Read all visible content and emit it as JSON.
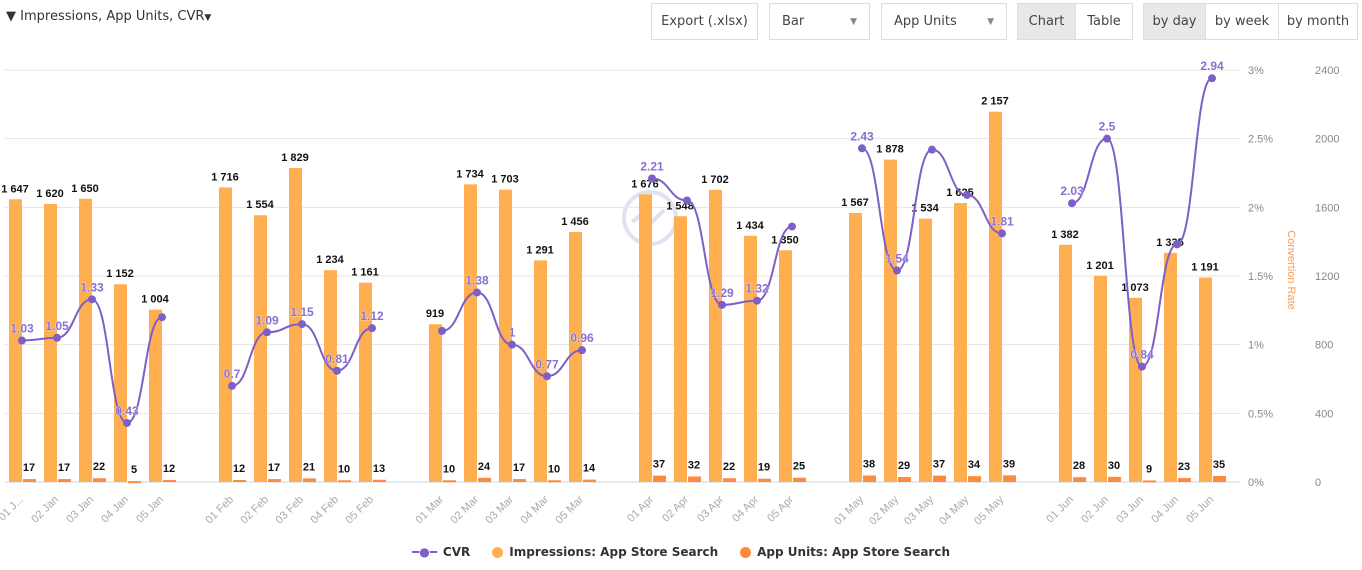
{
  "toolbar": {
    "filter_label": "Impressions, App Units, CVR",
    "export_label": "Export (.xlsx)",
    "chart_type": "Bar",
    "metric": "App Units",
    "view_chart": "Chart",
    "view_table": "Table",
    "by_day": "by day",
    "by_week": "by week",
    "by_month": "by month"
  },
  "watermark": "ASOdesk",
  "colors": {
    "impressions": "#ffaf50",
    "units": "#ff8a3d",
    "cvr": "#7e5fc8",
    "right_axis_title": "#ff9a50"
  },
  "chart_data": {
    "type": "bar",
    "categories": [
      "01 J...",
      "02 Jan",
      "03 Jan",
      "04 Jan",
      "05 Jan",
      "01 Feb",
      "02 Feb",
      "03 Feb",
      "04 Feb",
      "05 Feb",
      "01 Mar",
      "02 Mar",
      "03 Mar",
      "04 Mar",
      "05 Mar",
      "01 Apr",
      "02 Apr",
      "03 Apr",
      "04 Apr",
      "05 Apr",
      "01 May",
      "02 May",
      "03 May",
      "04 May",
      "05 May",
      "01 Jun",
      "02 Jun",
      "03 Jun",
      "04 Jun",
      "05 Jun"
    ],
    "series": [
      {
        "name": "Impressions: App Store Search",
        "type": "bar",
        "values": [
          1647,
          1620,
          1650,
          1152,
          1004,
          1716,
          1554,
          1829,
          1234,
          1161,
          919,
          1734,
          1703,
          1291,
          1456,
          1676,
          1548,
          1702,
          1434,
          1350,
          1567,
          1878,
          1534,
          1625,
          2157,
          1382,
          1201,
          1073,
          1335,
          1191
        ]
      },
      {
        "name": "App Units: App Store Search",
        "type": "bar",
        "values": [
          17,
          17,
          22,
          5,
          12,
          12,
          17,
          21,
          10,
          13,
          10,
          24,
          17,
          10,
          14,
          37,
          32,
          22,
          19,
          25,
          38,
          29,
          37,
          34,
          39,
          28,
          30,
          9,
          23,
          35
        ]
      },
      {
        "name": "CVR",
        "type": "line",
        "values": [
          1.03,
          1.05,
          1.33,
          0.43,
          1.2,
          0.7,
          1.09,
          1.15,
          0.81,
          1.12,
          1.1,
          1.38,
          1,
          0.77,
          0.96,
          2.21,
          2.05,
          1.29,
          1.32,
          1.86,
          2.43,
          1.54,
          2.42,
          2.09,
          1.81,
          2.03,
          2.5,
          0.84,
          1.73,
          2.94
        ],
        "labels": [
          "1.03",
          "1.05",
          "1.33",
          "0.43",
          "",
          "0.7",
          "1.09",
          "1.15",
          "0.81",
          "1.12",
          "",
          "1.38",
          "1",
          "0.77",
          "0.96",
          "2.21",
          "",
          "1.29",
          "1.32",
          "",
          "2.43",
          "1.54",
          "",
          "",
          "1.81",
          "2.03",
          "2.5",
          "0.84",
          "",
          "2.94"
        ]
      }
    ],
    "y_left": {
      "ticks": [
        "0%",
        "0.5%",
        "1%",
        "1.5%",
        "2%",
        "2.5%",
        "3%"
      ],
      "range": [
        0,
        3
      ],
      "title": "Convertion Rate"
    },
    "y_right": {
      "ticks": [
        "0",
        "400",
        "800",
        "1200",
        "1600",
        "2000",
        "2400"
      ],
      "range": [
        0,
        2400
      ]
    },
    "grid": true,
    "legend": "bottom"
  }
}
